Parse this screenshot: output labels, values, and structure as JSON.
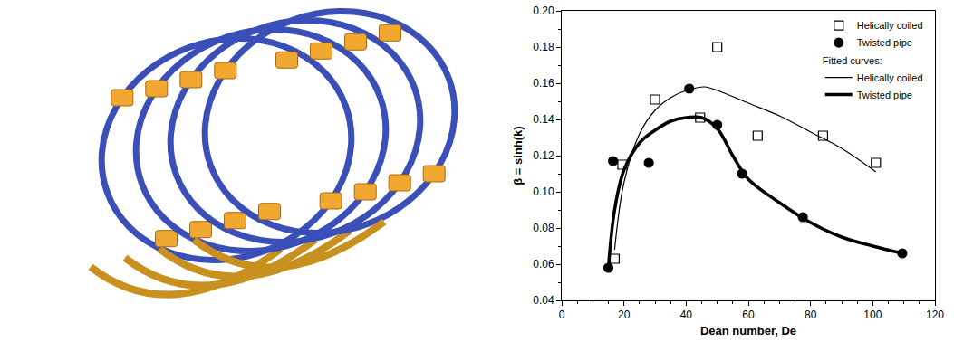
{
  "chart_data": {
    "type": "scatter",
    "x_label": "Dean number, De",
    "y_label": "β = sinh(k)",
    "xlim": [
      0,
      120
    ],
    "xticks": [
      0,
      20,
      40,
      60,
      80,
      100,
      120
    ],
    "ylim": [
      0.04,
      0.2
    ],
    "yticks": [
      0.04,
      0.06,
      0.08,
      {
        "value": 0.1,
        "label": "0.10"
      },
      0.12,
      0.14,
      0.16,
      0.18,
      {
        "value": 0.2,
        "label": "0.20"
      }
    ],
    "grid": false,
    "legend": "top right",
    "annotations": [
      "Fitted curves:"
    ],
    "series": [
      {
        "name": "Helically coiled",
        "type": "scatter",
        "marker": "square-open",
        "color": "#000000",
        "x": [
          17,
          19.5,
          30,
          44.5,
          50,
          63,
          84,
          101
        ],
        "values": [
          0.063,
          0.115,
          0.151,
          0.141,
          0.18,
          0.131,
          0.131,
          0.116
        ]
      },
      {
        "name": "Twisted pipe",
        "type": "scatter",
        "marker": "circle",
        "color": "#000000",
        "x": [
          15,
          16.5,
          28,
          41,
          50,
          58,
          77.5,
          109.5
        ],
        "values": [
          0.058,
          0.117,
          0.116,
          0.157,
          0.137,
          0.11,
          0.086,
          0.066
        ]
      },
      {
        "name": "Helically coiled",
        "type": "line",
        "line_style": "thin",
        "color": "#000000",
        "x": [
          17,
          20,
          25,
          30,
          35,
          40,
          46,
          50,
          60,
          70,
          80,
          90,
          101
        ],
        "values": [
          0.068,
          0.105,
          0.132,
          0.145,
          0.152,
          0.156,
          0.158,
          0.156,
          0.149,
          0.142,
          0.133,
          0.124,
          0.111
        ]
      },
      {
        "name": "Twisted pipe",
        "type": "line",
        "line_style": "thick",
        "color": "#000000",
        "x": [
          15,
          17,
          20,
          25,
          30,
          35,
          40,
          45,
          50,
          55,
          60,
          70,
          80,
          90,
          100,
          109.5
        ],
        "values": [
          0.058,
          0.09,
          0.112,
          0.127,
          0.134,
          0.139,
          0.141,
          0.141,
          0.135,
          0.12,
          0.107,
          0.094,
          0.083,
          0.075,
          0.07,
          0.066
        ]
      }
    ]
  }
}
